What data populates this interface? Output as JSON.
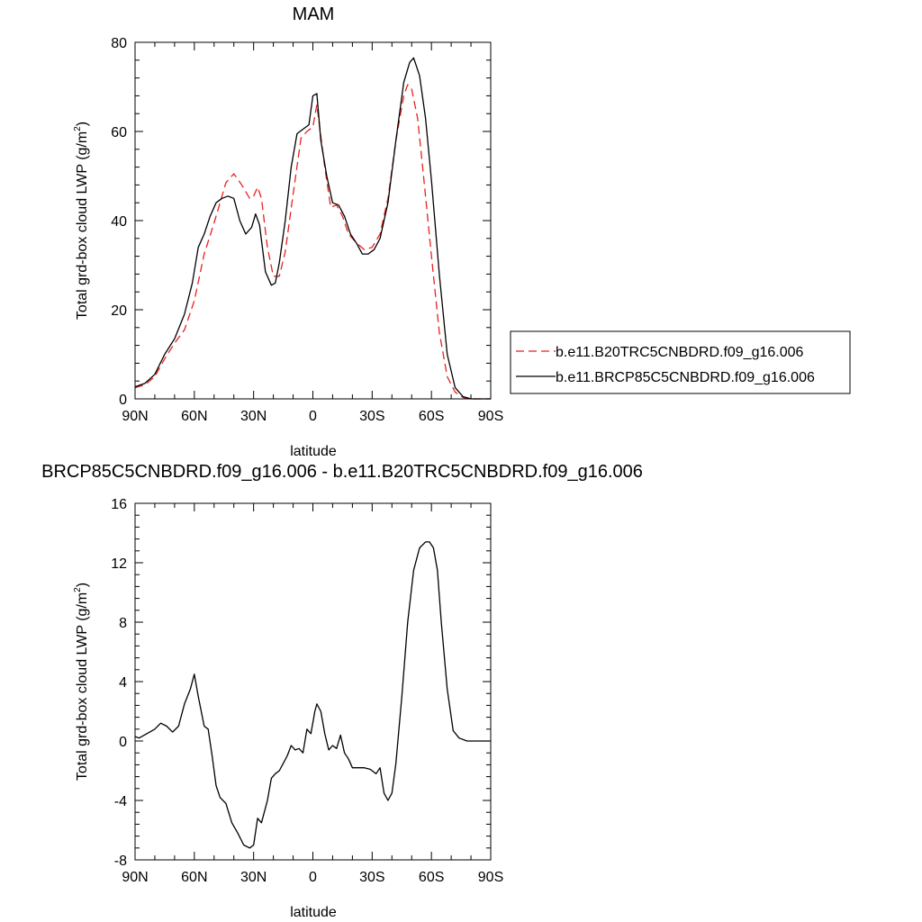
{
  "chart_data": [
    {
      "type": "line",
      "title": "MAM",
      "xlabel": "latitude",
      "ylabel": "Total grd-box cloud LWP (g/m",
      "ylabel_sup": "2",
      "ylabel_close": ")",
      "xlim": [
        90,
        -90
      ],
      "ylim": [
        0,
        80
      ],
      "x_ticks": [
        90,
        60,
        30,
        0,
        -30,
        -60,
        -90
      ],
      "x_tick_labels": [
        "90N",
        "60N",
        "30N",
        "0",
        "30S",
        "60S",
        "90S"
      ],
      "y_ticks": [
        0,
        20,
        40,
        60,
        80
      ],
      "y_tick_labels": [
        "0",
        "20",
        "40",
        "60",
        "80"
      ],
      "legend": "right",
      "series": [
        {
          "name": "b.e11.B20TRC5CNBDRD.f09_g16.006",
          "color": "#e8211f",
          "dash": "dashed",
          "x": [
            90,
            85,
            80,
            75,
            70,
            65,
            60,
            55,
            50,
            47,
            44,
            40,
            36,
            32,
            30,
            28,
            26,
            23,
            20,
            17,
            14,
            10,
            6,
            3,
            0,
            -2,
            -4,
            -6,
            -9,
            -12,
            -15,
            -18,
            -22,
            -26,
            -30,
            -34,
            -38,
            -42,
            -46,
            -48,
            -50,
            -53,
            -56,
            -60,
            -64,
            -68,
            -72,
            -76,
            -80,
            -85,
            -90
          ],
          "values": [
            2.5,
            3.2,
            5.0,
            9.0,
            12.5,
            15.5,
            22.0,
            32.5,
            39.5,
            44.0,
            48.5,
            50.5,
            48.0,
            45.0,
            45.5,
            47.5,
            45.0,
            34.0,
            27.5,
            27.5,
            33.0,
            46.0,
            58.5,
            60.0,
            61.0,
            66.0,
            59.0,
            52.0,
            43.0,
            43.5,
            41.0,
            37.0,
            35.0,
            33.5,
            34.0,
            37.0,
            45.0,
            58.0,
            68.0,
            70.5,
            69.5,
            63.0,
            50.0,
            32.0,
            15.0,
            5.0,
            1.5,
            0.3,
            0.0,
            0.0,
            0.0
          ]
        },
        {
          "name": "b.e11.BRCP85C5CNBDRD.f09_g16.006",
          "color": "#000000",
          "dash": "solid",
          "x": [
            90,
            85,
            80,
            75,
            70,
            65,
            61,
            58,
            55,
            52,
            49,
            46,
            43,
            40,
            37,
            34,
            31,
            29,
            27,
            24,
            21,
            19,
            17,
            14,
            11,
            8,
            5,
            2,
            0,
            -2,
            -4,
            -7,
            -10,
            -13,
            -16,
            -19,
            -22,
            -25,
            -28,
            -31,
            -34,
            -38,
            -42,
            -46,
            -49,
            -51,
            -54,
            -57,
            -60,
            -64,
            -68,
            -72,
            -76,
            -80,
            -85,
            -90
          ],
          "values": [
            2.7,
            3.5,
            5.5,
            10.0,
            13.5,
            19.0,
            26.0,
            34.0,
            37.0,
            41.0,
            44.0,
            45.0,
            45.5,
            45.0,
            40.0,
            37.0,
            38.5,
            41.5,
            39.0,
            28.5,
            25.5,
            26.0,
            30.5,
            40.0,
            52.0,
            59.5,
            60.5,
            61.5,
            68.0,
            68.5,
            58.0,
            50.0,
            44.0,
            43.5,
            41.0,
            37.0,
            35.0,
            32.5,
            32.5,
            33.5,
            36.0,
            44.0,
            58.0,
            71.0,
            75.5,
            76.5,
            72.5,
            63.0,
            49.0,
            28.0,
            10.0,
            2.5,
            0.5,
            0.0,
            0.0,
            0.0
          ]
        }
      ]
    },
    {
      "type": "line",
      "title": "BRCP85C5CNBDRD.f09_g16.006 - b.e11.B20TRC5CNBDRD.f09_g16.006",
      "xlabel": "latitude",
      "ylabel": "Total grd-box cloud LWP (g/m",
      "ylabel_sup": "2",
      "ylabel_close": ")",
      "xlim": [
        90,
        -90
      ],
      "ylim": [
        -8,
        16
      ],
      "x_ticks": [
        90,
        60,
        30,
        0,
        -30,
        -60,
        -90
      ],
      "x_tick_labels": [
        "90N",
        "60N",
        "30N",
        "0",
        "30S",
        "60S",
        "90S"
      ],
      "y_ticks": [
        -8,
        -4,
        0,
        4,
        8,
        12,
        16
      ],
      "y_tick_labels": [
        "-8",
        "-4",
        "0",
        "4",
        "8",
        "12",
        "16"
      ],
      "series": [
        {
          "color": "#000000",
          "dash": "solid",
          "x": [
            90,
            88,
            84,
            80,
            77,
            74,
            71,
            68,
            65,
            62,
            60,
            58,
            55,
            53,
            51,
            49,
            47,
            44,
            41,
            38,
            35,
            32,
            30,
            28,
            26,
            23,
            21,
            19,
            17,
            15,
            13,
            11,
            9,
            7,
            5,
            3,
            1,
            -1,
            -2,
            -4,
            -6,
            -8,
            -10,
            -12,
            -14,
            -16,
            -18,
            -20,
            -23,
            -26,
            -29,
            -32,
            -34,
            -36,
            -38,
            -40,
            -42,
            -45,
            -48,
            -51,
            -54,
            -57,
            -59,
            -61,
            -63,
            -65,
            -68,
            -71,
            -74,
            -78,
            -82,
            -86,
            -90
          ],
          "values": [
            0.3,
            0.2,
            0.5,
            0.8,
            1.2,
            1.0,
            0.6,
            1.0,
            2.5,
            3.5,
            4.5,
            3.0,
            1.0,
            0.8,
            -1.0,
            -3.0,
            -3.8,
            -4.2,
            -5.5,
            -6.2,
            -7.0,
            -7.2,
            -7.0,
            -5.2,
            -5.5,
            -4.0,
            -2.5,
            -2.2,
            -2.0,
            -1.5,
            -1.0,
            -0.3,
            -0.6,
            -0.5,
            -0.8,
            0.8,
            0.5,
            2.0,
            2.5,
            2.0,
            0.5,
            -0.6,
            -0.3,
            -0.5,
            0.4,
            -0.8,
            -1.2,
            -1.8,
            -1.8,
            -1.8,
            -1.9,
            -2.2,
            -1.8,
            -3.5,
            -4.0,
            -3.5,
            -1.5,
            3.0,
            8.0,
            11.5,
            13.0,
            13.4,
            13.4,
            13.0,
            11.5,
            8.0,
            3.5,
            0.7,
            0.2,
            0.0,
            0.0,
            0.0,
            0.0
          ]
        }
      ]
    }
  ]
}
